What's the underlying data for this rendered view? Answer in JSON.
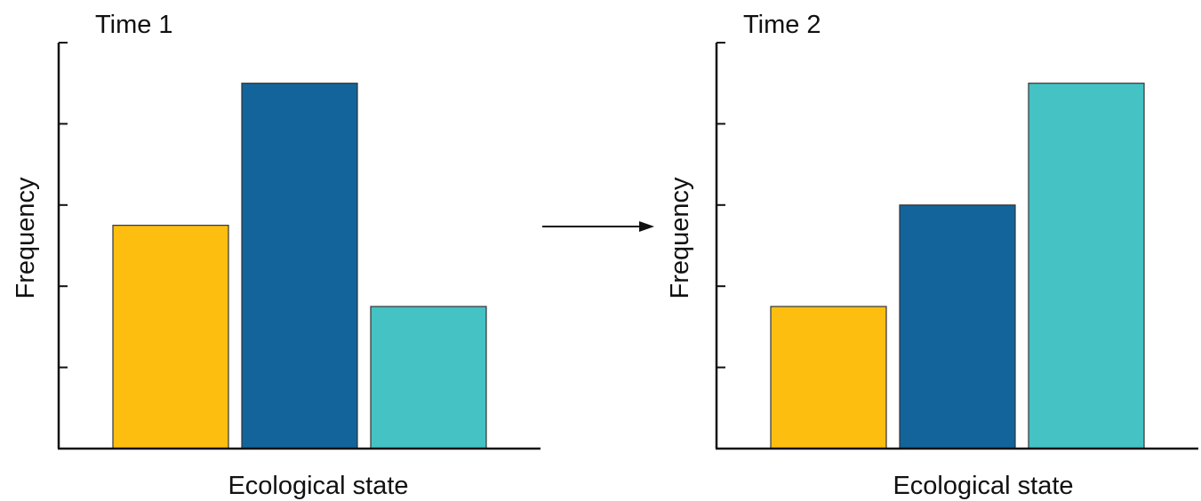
{
  "chart_data": [
    {
      "type": "bar",
      "title": "Time 1",
      "xlabel": "Ecological state",
      "ylabel": "Frequency",
      "categories": [
        "",
        "",
        ""
      ],
      "values": [
        2.75,
        4.5,
        1.75
      ],
      "colors": [
        "#FDBE10",
        "#13649A",
        "#44C2C4"
      ],
      "ylim": [
        0,
        5
      ],
      "yticks": [
        1,
        2,
        3,
        4,
        5
      ],
      "grid": false,
      "legend": "none"
    },
    {
      "type": "bar",
      "title": "Time 2",
      "xlabel": "Ecological state",
      "ylabel": "Frequency",
      "categories": [
        "",
        "",
        ""
      ],
      "values": [
        1.75,
        3,
        4.5
      ],
      "colors": [
        "#FDBE10",
        "#13649A",
        "#44C2C4"
      ],
      "ylim": [
        0,
        5
      ],
      "yticks": [
        1,
        2,
        3,
        4,
        5
      ],
      "grid": false,
      "legend": "none"
    }
  ],
  "transition_arrow": {
    "icon": "right-arrow-icon"
  }
}
